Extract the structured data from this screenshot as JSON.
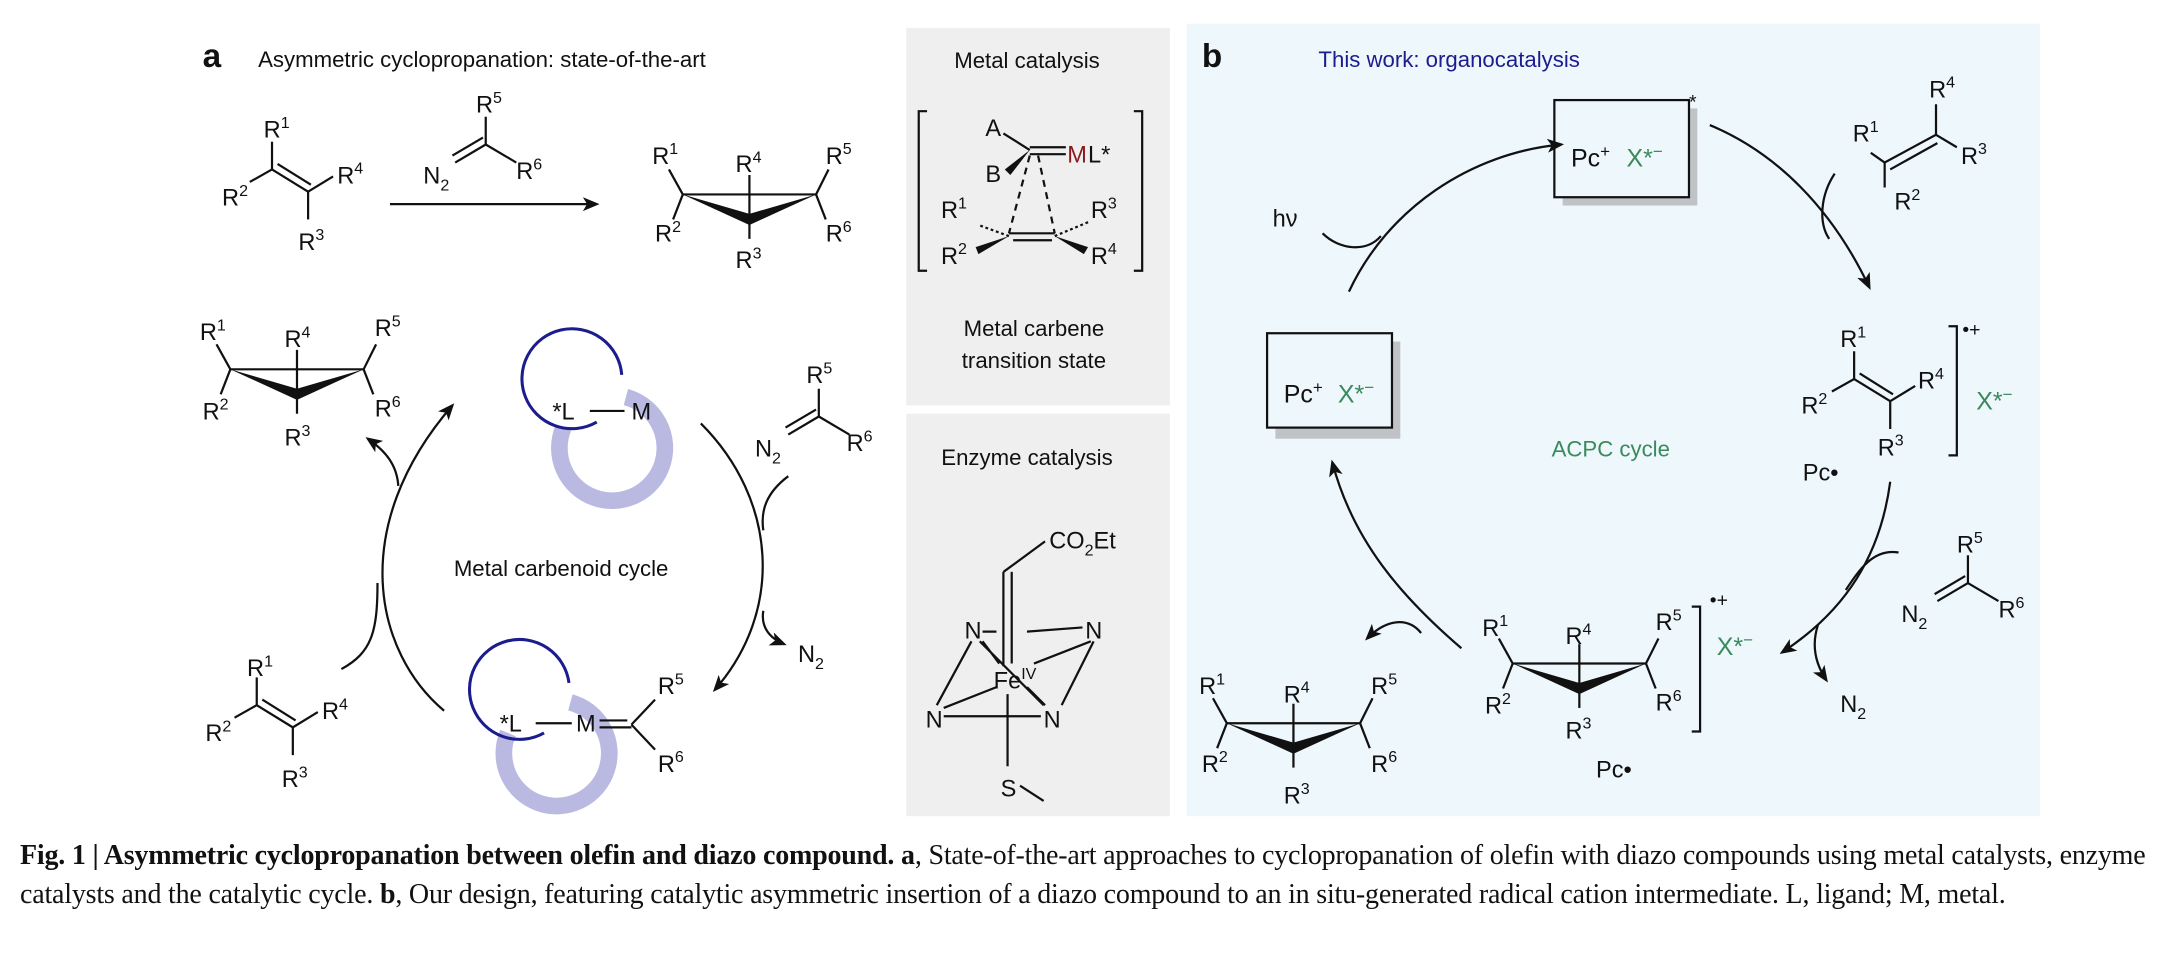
{
  "panel_a": {
    "label": "a",
    "title": "Asymmetric cyclopropanation: state-of-the-art",
    "olefin_top": [
      "R^1",
      "R^2",
      "R^3",
      "R^4"
    ],
    "diazo_top": [
      "R^5",
      "N_2",
      "R^6"
    ],
    "product_top": [
      "R^1",
      "R^4",
      "R^5",
      "R^2",
      "R^3",
      "R^6"
    ],
    "cycle_label": "Metal carbenoid cycle",
    "product_cycle": [
      "R^1",
      "R^4",
      "R^5",
      "R^2",
      "R^3",
      "R^6"
    ],
    "catalyst": {
      "ligand": "*L",
      "metal": "M"
    },
    "carbenoid": {
      "ligand": "*L",
      "metal": "M",
      "r5": "R^5",
      "r6": "R^6"
    },
    "diazo_cycle": [
      "R^5",
      "N_2",
      "R^6"
    ],
    "n2_out": "N_2",
    "olefin_cycle": [
      "R^1",
      "R^2",
      "R^3",
      "R^4"
    ],
    "metal_box": {
      "title": "Metal catalysis",
      "ts": {
        "a": "A",
        "b": "B",
        "metal": "M",
        "ml_suffix": "L*",
        "r1": "R^1",
        "r2": "R^2",
        "r3": "R^3",
        "r4": "R^4"
      },
      "caption_line1": "Metal carbene",
      "caption_line2": "transition state"
    },
    "enzyme_box": {
      "title": "Enzyme catalysis",
      "ester": "CO_2Et",
      "iron": "Fe^IV",
      "n": "N",
      "s": "S"
    },
    "colors": {
      "ligand_arc": "#1c1c8e",
      "arc_shadow": "#b9b9e2",
      "metal_red": "#8b1a1a",
      "box_bg": "#efefef"
    }
  },
  "panel_b": {
    "label": "b",
    "title": "This work: organocatalysis",
    "cycle_label": "ACPC cycle",
    "excited_box": {
      "pc": "Pc^+",
      "x": "X*^−",
      "star": "*"
    },
    "ground_box": {
      "pc": "Pc^+",
      "x": "X*^−"
    },
    "hv": "hν",
    "olefin": [
      "R^1",
      "R^2",
      "R^3",
      "R^4"
    ],
    "radical_cation": {
      "subs": [
        "R^1",
        "R^2",
        "R^3",
        "R^4"
      ],
      "charge": "•+",
      "x": "X*^−",
      "pc": "Pc•"
    },
    "diazo": [
      "R^5",
      "N_2",
      "R^6"
    ],
    "n2_out": "N_2",
    "intermediate": {
      "subs": [
        "R^1",
        "R^4",
        "R^5",
        "R^2",
        "R^3",
        "R^6"
      ],
      "charge": "•+",
      "x": "X*^−",
      "pc": "Pc•"
    },
    "product": [
      "R^1",
      "R^4",
      "R^5",
      "R^2",
      "R^3",
      "R^6"
    ],
    "colors": {
      "background": "#eef7fc",
      "title": "#1c1c8e",
      "green": "#3a8a5c"
    }
  },
  "caption": {
    "fig": "Fig. 1 | Asymmetric cyclopropanation between olefin and diazo compound.",
    "a_label": "a",
    "a_text": ", State-of-the-art approaches to cyclopropanation of olefin with diazo compounds using metal catalysts, enzyme catalysts and the catalytic cycle.",
    "b_label": "b",
    "b_text": ", Our design, featuring catalytic asymmetric insertion of a diazo compound to an in situ-generated radical cation intermediate. L, ligand; M, metal."
  }
}
